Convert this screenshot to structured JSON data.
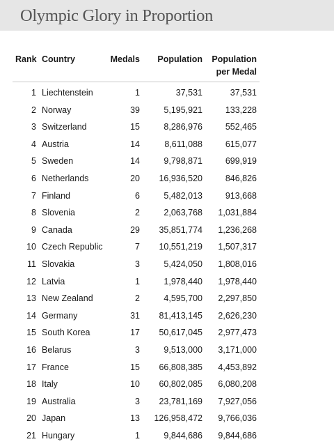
{
  "page": {
    "title": "Olympic Glory in Proportion"
  },
  "table": {
    "headers": {
      "rank": "Rank",
      "country": "Country",
      "medals": "Medals",
      "population": "Population",
      "per_medal_line1": "Population",
      "per_medal_line2": "per Medal"
    },
    "rows": [
      {
        "rank": "1",
        "country": "Liechtenstein",
        "medals": "1",
        "population": "37,531",
        "per_medal": "37,531"
      },
      {
        "rank": "2",
        "country": "Norway",
        "medals": "39",
        "population": "5,195,921",
        "per_medal": "133,228"
      },
      {
        "rank": "3",
        "country": "Switzerland",
        "medals": "15",
        "population": "8,286,976",
        "per_medal": "552,465"
      },
      {
        "rank": "4",
        "country": "Austria",
        "medals": "14",
        "population": "8,611,088",
        "per_medal": "615,077"
      },
      {
        "rank": "5",
        "country": "Sweden",
        "medals": "14",
        "population": "9,798,871",
        "per_medal": "699,919"
      },
      {
        "rank": "6",
        "country": "Netherlands",
        "medals": "20",
        "population": "16,936,520",
        "per_medal": "846,826"
      },
      {
        "rank": "7",
        "country": "Finland",
        "medals": "6",
        "population": "5,482,013",
        "per_medal": "913,668"
      },
      {
        "rank": "8",
        "country": "Slovenia",
        "medals": "2",
        "population": "2,063,768",
        "per_medal": "1,031,884"
      },
      {
        "rank": "9",
        "country": "Canada",
        "medals": "29",
        "population": "35,851,774",
        "per_medal": "1,236,268"
      },
      {
        "rank": "10",
        "country": "Czech Republic",
        "medals": "7",
        "population": "10,551,219",
        "per_medal": "1,507,317"
      },
      {
        "rank": "11",
        "country": "Slovakia",
        "medals": "3",
        "population": "5,424,050",
        "per_medal": "1,808,016"
      },
      {
        "rank": "12",
        "country": "Latvia",
        "medals": "1",
        "population": "1,978,440",
        "per_medal": "1,978,440"
      },
      {
        "rank": "13",
        "country": "New Zealand",
        "medals": "2",
        "population": "4,595,700",
        "per_medal": "2,297,850"
      },
      {
        "rank": "14",
        "country": "Germany",
        "medals": "31",
        "population": "81,413,145",
        "per_medal": "2,626,230"
      },
      {
        "rank": "15",
        "country": "South Korea",
        "medals": "17",
        "population": "50,617,045",
        "per_medal": "2,977,473"
      },
      {
        "rank": "16",
        "country": "Belarus",
        "medals": "3",
        "population": "9,513,000",
        "per_medal": "3,171,000"
      },
      {
        "rank": "17",
        "country": "France",
        "medals": "15",
        "population": "66,808,385",
        "per_medal": "4,453,892"
      },
      {
        "rank": "18",
        "country": "Italy",
        "medals": "10",
        "population": "60,802,085",
        "per_medal": "6,080,208"
      },
      {
        "rank": "19",
        "country": "Australia",
        "medals": "3",
        "population": "23,781,169",
        "per_medal": "7,927,056"
      },
      {
        "rank": "20",
        "country": "Japan",
        "medals": "13",
        "population": "126,958,472",
        "per_medal": "9,766,036"
      },
      {
        "rank": "21",
        "country": "Hungary",
        "medals": "1",
        "population": "9,844,686",
        "per_medal": "9,844,686"
      }
    ]
  }
}
